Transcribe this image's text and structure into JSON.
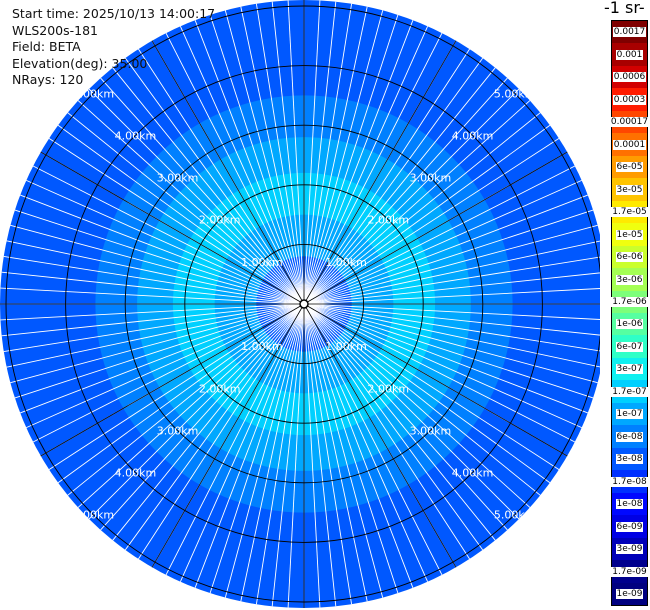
{
  "header": {
    "lines": [
      "Start time: 2025/10/13 14:00:17",
      "WLS200s-181",
      "Field: BETA",
      "Elevation(deg): 35.00",
      "NRays: 120"
    ]
  },
  "colorbar": {
    "title": "-1 sr-",
    "labels": [
      "0.0017",
      "0.001",
      "0.0006",
      "0.0003",
      "0.00017",
      "0.0001",
      "6e-05",
      "3e-05",
      "1.7e-05",
      "1e-05",
      "6e-06",
      "3e-06",
      "1.7e-06",
      "1e-06",
      "6e-07",
      "3e-07",
      "1.7e-07",
      "1e-07",
      "6e-08",
      "3e-08",
      "1.7e-08",
      "1e-08",
      "6e-09",
      "3e-09",
      "1.7e-09",
      "1e-09"
    ],
    "colors": [
      "#7f0000",
      "#a80000",
      "#d20000",
      "#ff1c00",
      "#ff4700",
      "#ff7100",
      "#ff9c00",
      "#ffc400",
      "#ffea00",
      "#f0ff0f",
      "#caff2c",
      "#a4ff53",
      "#7dff7a",
      "#56ffa1",
      "#2fffc7",
      "#0ff0f0",
      "#00d0ff",
      "#00a8ff",
      "#0080ff",
      "#0058ff",
      "#0030ff",
      "#0008ff",
      "#0000e4",
      "#0000b8",
      "#00008d",
      "#000080"
    ]
  },
  "chart_data": {
    "type": "heatmap",
    "subtype": "polar-ppi",
    "title": "",
    "field": "BETA",
    "elevation_deg": 35.0,
    "n_rays": 120,
    "range_rings_km": [
      1.0,
      2.0,
      3.0,
      4.0,
      5.0
    ],
    "ring_labels": [
      "1.00km",
      "2.00km",
      "3.00km",
      "4.00km",
      "5.00km"
    ],
    "range_max_km": 5.1,
    "spokes_deg": [
      0,
      30,
      60,
      90,
      120,
      150,
      180,
      210,
      240,
      270,
      300,
      330
    ],
    "colormap": "jet (log scale)",
    "value_range": [
      "1e-09",
      "0.0017"
    ],
    "value_by_range_km": [
      {
        "range_km": 0.3,
        "color": "#0030ff"
      },
      {
        "range_km": 0.8,
        "color": "#0058ff"
      },
      {
        "range_km": 1.5,
        "color": "#00a8ff"
      },
      {
        "range_km": 2.2,
        "color": "#00d0ff"
      },
      {
        "range_km": 2.8,
        "color": "#00a8ff"
      },
      {
        "range_km": 3.5,
        "color": "#0080ff"
      },
      {
        "range_km": 4.5,
        "color": "#0058ff"
      },
      {
        "range_km": 5.1,
        "color": "#0058ff"
      }
    ]
  }
}
